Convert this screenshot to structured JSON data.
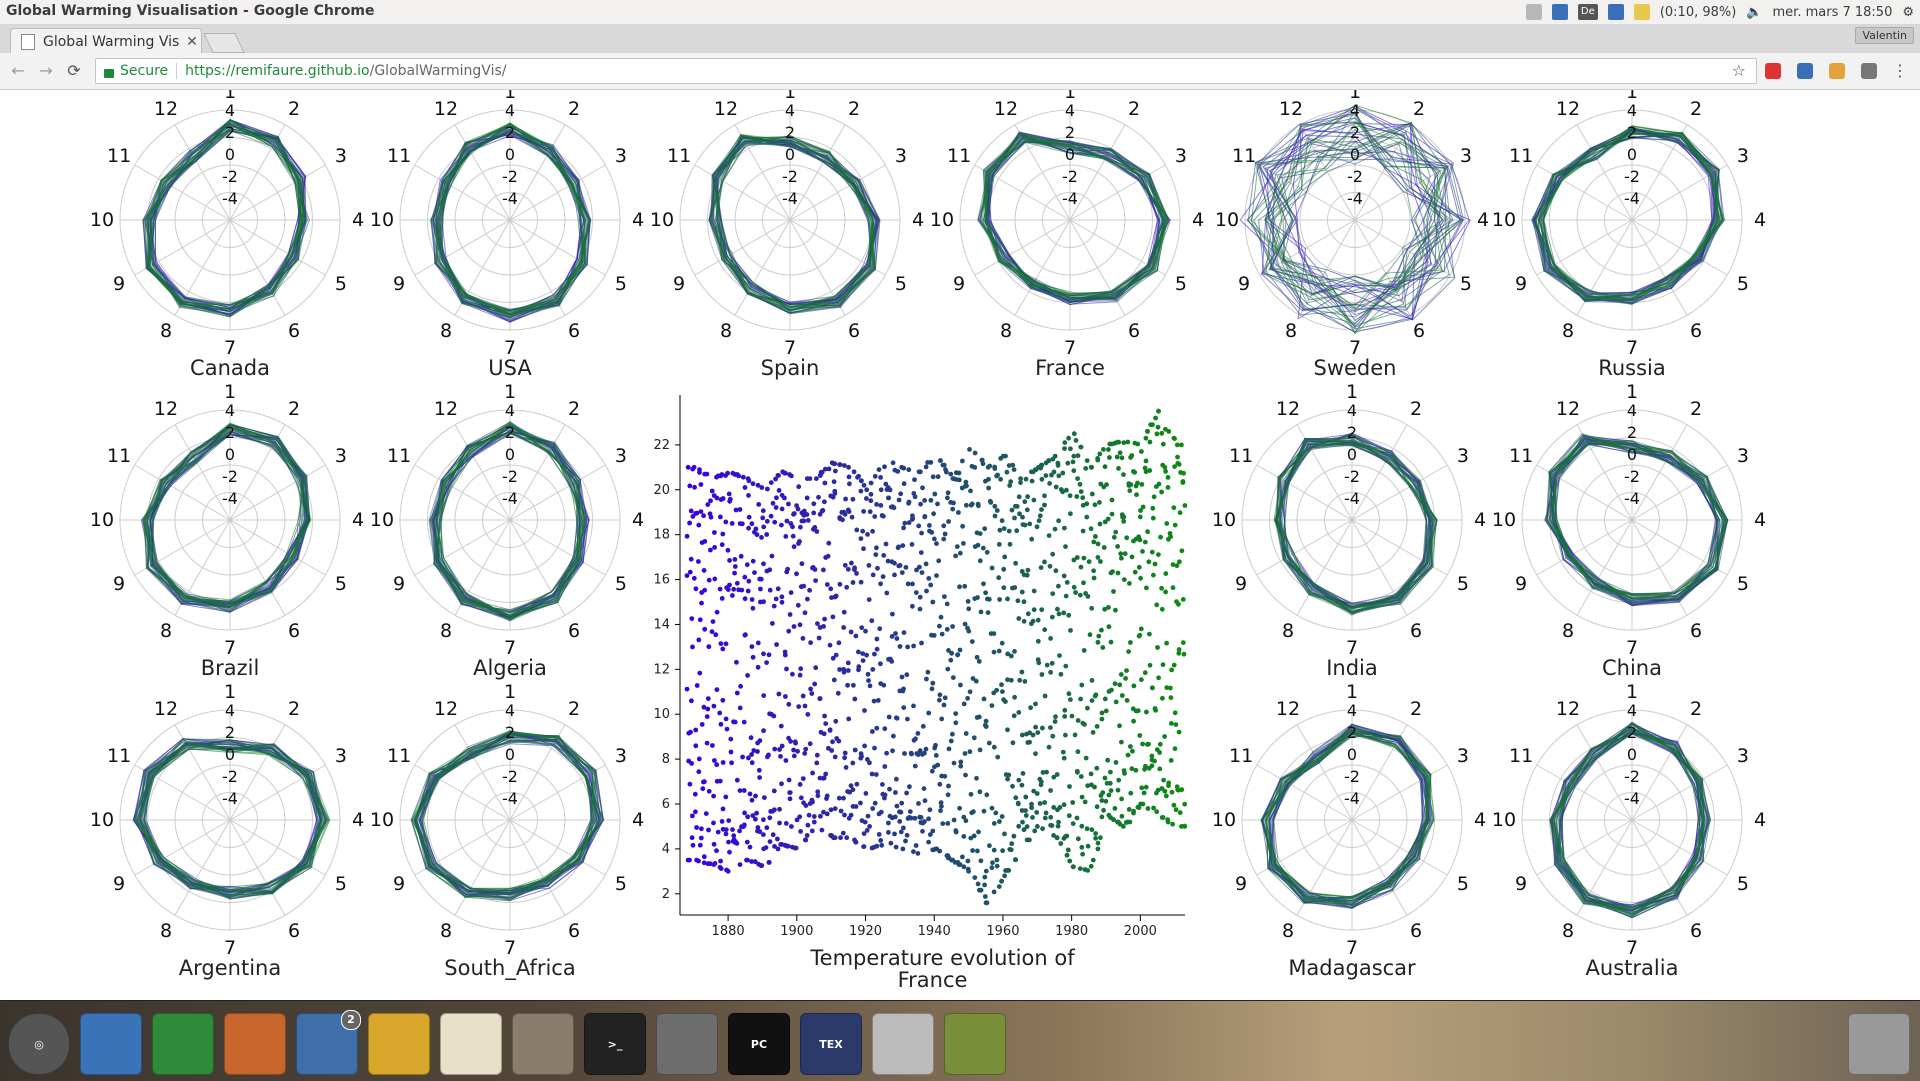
{
  "window": {
    "title": "Global Warming Visualisation - Google Chrome"
  },
  "tray": {
    "status": "(0:10, 98%)",
    "datetime": "mer. mars  7 18:50",
    "lang": "De",
    "user": "Valentin"
  },
  "tab": {
    "title": "Global Warming Vis"
  },
  "address": {
    "secure_label": "Secure",
    "url_host": "https://remifaure.github.io",
    "url_path": "/GlobalWarmingVis/"
  },
  "radar_ticks": [
    "4",
    "2",
    "0",
    "-2",
    "-4"
  ],
  "months": [
    "1",
    "2",
    "3",
    "4",
    "5",
    "6",
    "7",
    "8",
    "9",
    "10",
    "11",
    "12"
  ],
  "radars": [
    {
      "name": "Canada"
    },
    {
      "name": "USA"
    },
    {
      "name": "Spain"
    },
    {
      "name": "France"
    },
    {
      "name": "Sweden"
    },
    {
      "name": "Russia"
    },
    {
      "name": "Brazil"
    },
    {
      "name": "Algeria"
    },
    {
      "name": "India"
    },
    {
      "name": "China"
    },
    {
      "name": "Argentina"
    },
    {
      "name": "South_Africa"
    },
    {
      "name": "Madagascar"
    },
    {
      "name": "Australia"
    }
  ],
  "colors": {
    "early": "#3a00e0",
    "late": "#0f8a12",
    "grid": "#cccccc"
  },
  "chart_data": {
    "type": "scatter",
    "title": "Temperature evolution of France",
    "xlim": [
      1866,
      2013
    ],
    "ylim": [
      1.5,
      24
    ],
    "x_ticks": [
      1880,
      1900,
      1920,
      1940,
      1960,
      1980,
      2000
    ],
    "y_ticks": [
      2,
      4,
      6,
      8,
      10,
      12,
      14,
      16,
      18,
      20,
      22
    ],
    "points_note": "monthly temperatures, one point per month 1868-2012",
    "series": [
      {
        "x": [
          1870,
          1875,
          1880,
          1885,
          1890,
          1895,
          1900,
          1905,
          1910,
          1915,
          1920,
          1925,
          1930,
          1935,
          1940,
          1945,
          1950,
          1955,
          1960,
          1965,
          1970,
          1975,
          1980,
          1985,
          1990,
          1995,
          2000,
          2005,
          2010
        ],
        "y_min": [
          3.5,
          3.3,
          3.0,
          3.5,
          3.2,
          4.2,
          4.0,
          5.0,
          4.5,
          4.5,
          4.0,
          4.2,
          4.0,
          3.8,
          4.0,
          3.5,
          3.0,
          1.6,
          2.8,
          4.0,
          5.0,
          4.5,
          3.2,
          3.0,
          5.5,
          5.0,
          6.0,
          5.5,
          5.0
        ],
        "y_max": [
          21.0,
          20.5,
          20.8,
          20.5,
          20.0,
          20.8,
          20.5,
          20.5,
          21.2,
          21.0,
          20.0,
          21.5,
          21.0,
          20.8,
          21.5,
          20.5,
          21.8,
          21.0,
          21.5,
          20.5,
          21.0,
          21.5,
          22.5,
          21.0,
          22.0,
          22.2,
          22.0,
          23.5,
          22.0
        ]
      }
    ]
  },
  "launcher": {
    "chrome_badge": "2",
    "thunderbird_badge": "2"
  }
}
